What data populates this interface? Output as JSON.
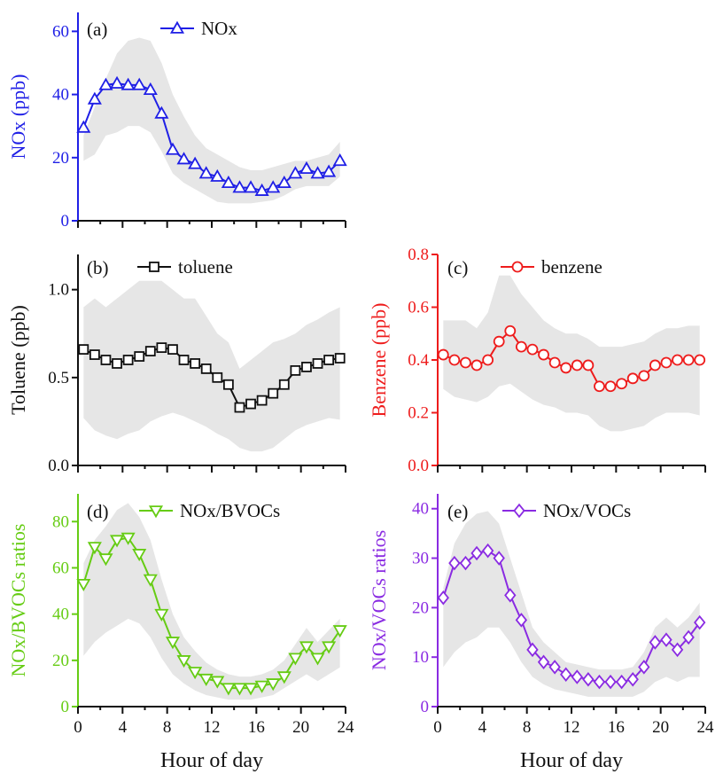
{
  "chart_data": [
    {
      "type": "line",
      "panel_label": "(a)",
      "color": "#1f1fe6",
      "marker": "triangle-up",
      "ylabel": "NOx (ppb)",
      "xlabel": "",
      "xlim": [
        0,
        24
      ],
      "ylim": [
        0,
        66
      ],
      "yticks": [
        0,
        20,
        40,
        60
      ],
      "ytick_labels": [
        "0",
        "20",
        "40",
        "60"
      ],
      "xticks": [
        0,
        4,
        8,
        12,
        16,
        20,
        24
      ],
      "xtick_labels": [],
      "x": [
        0.5,
        1.5,
        2.5,
        3.5,
        4.5,
        5.5,
        6.5,
        7.5,
        8.5,
        9.5,
        10.5,
        11.5,
        12.5,
        13.5,
        14.5,
        15.5,
        16.5,
        17.5,
        18.5,
        19.5,
        20.5,
        21.5,
        22.5,
        23.5
      ],
      "series": [
        {
          "name": "NOx",
          "values": [
            29.5,
            38.5,
            43,
            43.5,
            43,
            43,
            41.5,
            34,
            22.5,
            19.5,
            18,
            15,
            14,
            12,
            10.5,
            10.5,
            9.5,
            10.5,
            12,
            15,
            16.5,
            15,
            15.5,
            19
          ]
        }
      ],
      "band_upper": [
        27,
        36,
        45,
        53,
        57,
        58,
        57,
        50,
        40,
        33,
        27,
        23,
        21,
        19,
        17,
        16,
        16,
        17,
        18,
        19,
        19,
        20,
        21,
        25
      ],
      "band_lower": [
        19,
        21,
        27,
        28,
        30,
        30,
        28,
        22,
        15,
        12,
        10,
        8,
        6,
        5.5,
        5.5,
        5.5,
        6,
        6.5,
        8,
        10,
        11,
        11,
        11,
        14
      ]
    },
    {
      "type": "line",
      "panel_label": "(b)",
      "color": "#111111",
      "marker": "square",
      "ylabel": "Toluene (ppb)",
      "xlabel": "",
      "xlim": [
        0,
        24
      ],
      "ylim": [
        0,
        1.2
      ],
      "yticks": [
        0,
        0.5,
        1.0
      ],
      "ytick_labels": [
        "0.0",
        "0.5",
        "1.0"
      ],
      "xticks": [
        0,
        4,
        8,
        12,
        16,
        20,
        24
      ],
      "xtick_labels": [],
      "x": [
        0.5,
        1.5,
        2.5,
        3.5,
        4.5,
        5.5,
        6.5,
        7.5,
        8.5,
        9.5,
        10.5,
        11.5,
        12.5,
        13.5,
        14.5,
        15.5,
        16.5,
        17.5,
        18.5,
        19.5,
        20.5,
        21.5,
        22.5,
        23.5
      ],
      "series": [
        {
          "name": "toluene",
          "values": [
            0.66,
            0.63,
            0.6,
            0.58,
            0.6,
            0.62,
            0.65,
            0.67,
            0.66,
            0.6,
            0.58,
            0.55,
            0.5,
            0.46,
            0.33,
            0.35,
            0.37,
            0.41,
            0.46,
            0.54,
            0.56,
            0.58,
            0.6,
            0.61
          ]
        }
      ],
      "band_upper": [
        0.9,
        0.95,
        0.9,
        0.95,
        1.0,
        1.05,
        1.05,
        1.05,
        1.0,
        0.95,
        0.95,
        0.85,
        0.75,
        0.7,
        0.55,
        0.6,
        0.65,
        0.7,
        0.72,
        0.75,
        0.8,
        0.83,
        0.87,
        0.9
      ],
      "band_lower": [
        0.27,
        0.2,
        0.17,
        0.15,
        0.18,
        0.2,
        0.25,
        0.28,
        0.3,
        0.28,
        0.25,
        0.22,
        0.18,
        0.15,
        0.1,
        0.08,
        0.08,
        0.1,
        0.15,
        0.2,
        0.23,
        0.25,
        0.27,
        0.26
      ]
    },
    {
      "type": "line",
      "panel_label": "(c)",
      "color": "#ee1c1c",
      "marker": "circle",
      "ylabel": "Benzene (ppb)",
      "xlabel": "",
      "xlim": [
        0,
        24
      ],
      "ylim": [
        0,
        0.8
      ],
      "yticks": [
        0,
        0.2,
        0.4,
        0.6,
        0.8
      ],
      "ytick_labels": [
        "0.0",
        "0.2",
        "0.4",
        "0.6",
        "0.8"
      ],
      "xticks": [
        0,
        4,
        8,
        12,
        16,
        20,
        24
      ],
      "xtick_labels": [],
      "x": [
        0.5,
        1.5,
        2.5,
        3.5,
        4.5,
        5.5,
        6.5,
        7.5,
        8.5,
        9.5,
        10.5,
        11.5,
        12.5,
        13.5,
        14.5,
        15.5,
        16.5,
        17.5,
        18.5,
        19.5,
        20.5,
        21.5,
        22.5,
        23.5
      ],
      "series": [
        {
          "name": "benzene",
          "values": [
            0.42,
            0.4,
            0.39,
            0.38,
            0.4,
            0.47,
            0.51,
            0.45,
            0.44,
            0.42,
            0.39,
            0.37,
            0.38,
            0.38,
            0.3,
            0.3,
            0.31,
            0.33,
            0.34,
            0.38,
            0.39,
            0.4,
            0.4,
            0.4
          ]
        }
      ],
      "band_upper": [
        0.55,
        0.55,
        0.55,
        0.52,
        0.58,
        0.72,
        0.72,
        0.65,
        0.6,
        0.55,
        0.52,
        0.5,
        0.5,
        0.48,
        0.45,
        0.45,
        0.45,
        0.46,
        0.47,
        0.5,
        0.52,
        0.52,
        0.53,
        0.53
      ],
      "band_lower": [
        0.29,
        0.26,
        0.25,
        0.24,
        0.26,
        0.3,
        0.31,
        0.28,
        0.25,
        0.23,
        0.22,
        0.2,
        0.2,
        0.19,
        0.15,
        0.13,
        0.13,
        0.14,
        0.15,
        0.18,
        0.2,
        0.2,
        0.2,
        0.19
      ]
    },
    {
      "type": "line",
      "panel_label": "(d)",
      "color": "#66cc14",
      "marker": "triangle-down",
      "ylabel": "NOx/BVOCs ratios",
      "xlabel": "Hour of day",
      "xlim": [
        0,
        24
      ],
      "ylim": [
        0,
        92
      ],
      "yticks": [
        0,
        20,
        40,
        60,
        80
      ],
      "ytick_labels": [
        "0",
        "20",
        "40",
        "60",
        "80"
      ],
      "xticks": [
        0,
        4,
        8,
        12,
        16,
        20,
        24
      ],
      "xtick_labels": [
        "0",
        "4",
        "8",
        "12",
        "16",
        "20",
        "24"
      ],
      "x": [
        0.5,
        1.5,
        2.5,
        3.5,
        4.5,
        5.5,
        6.5,
        7.5,
        8.5,
        9.5,
        10.5,
        11.5,
        12.5,
        13.5,
        14.5,
        15.5,
        16.5,
        17.5,
        18.5,
        19.5,
        20.5,
        21.5,
        22.5,
        23.5
      ],
      "series": [
        {
          "name": "NOx/BVOCs",
          "values": [
            53,
            69,
            64,
            72,
            73,
            66,
            55,
            40,
            28,
            20,
            15,
            12,
            11,
            8,
            8,
            8,
            9,
            10,
            13,
            21,
            26,
            21,
            26,
            33
          ]
        }
      ],
      "band_upper": [
        62,
        72,
        78,
        85,
        88,
        82,
        72,
        55,
        40,
        30,
        24,
        19,
        16,
        14,
        13,
        13,
        14,
        16,
        20,
        27,
        34,
        28,
        33,
        38
      ],
      "band_lower": [
        22,
        28,
        32,
        35,
        38,
        36,
        30,
        21,
        14,
        10,
        7,
        5,
        4,
        3,
        3,
        3,
        4,
        5,
        8,
        11,
        14,
        11,
        14,
        17
      ]
    },
    {
      "type": "line",
      "panel_label": "(e)",
      "color": "#8a2be2",
      "marker": "diamond",
      "ylabel": "NOx/VOCs ratios",
      "xlabel": "Hour of day",
      "xlim": [
        0,
        24
      ],
      "ylim": [
        0,
        43
      ],
      "yticks": [
        0,
        10,
        20,
        30,
        40
      ],
      "ytick_labels": [
        "0",
        "10",
        "20",
        "30",
        "40"
      ],
      "xticks": [
        0,
        4,
        8,
        12,
        16,
        20,
        24
      ],
      "xtick_labels": [
        "0",
        "4",
        "8",
        "12",
        "16",
        "20",
        "24"
      ],
      "x": [
        0.5,
        1.5,
        2.5,
        3.5,
        4.5,
        5.5,
        6.5,
        7.5,
        8.5,
        9.5,
        10.5,
        11.5,
        12.5,
        13.5,
        14.5,
        15.5,
        16.5,
        17.5,
        18.5,
        19.5,
        20.5,
        21.5,
        22.5,
        23.5
      ],
      "series": [
        {
          "name": "NOx/VOCs",
          "values": [
            22,
            29,
            29,
            31,
            31.5,
            30,
            22.5,
            17.5,
            11.5,
            9,
            8,
            6.5,
            6,
            5.5,
            5,
            5,
            5,
            5.5,
            8,
            13,
            13.5,
            11.5,
            14,
            17
          ]
        }
      ],
      "band_upper": [
        24,
        33,
        37,
        39,
        39.5,
        37,
        30,
        23,
        16,
        13,
        11,
        9,
        8.5,
        8,
        7.5,
        7.5,
        7.5,
        8,
        11,
        16,
        18,
        16,
        18,
        21
      ],
      "band_lower": [
        8,
        11,
        13,
        14,
        16,
        16,
        13,
        9,
        6,
        4.5,
        3.5,
        3,
        2.5,
        2,
        2,
        2,
        2,
        2,
        3,
        5,
        6,
        5,
        6,
        6
      ]
    }
  ]
}
